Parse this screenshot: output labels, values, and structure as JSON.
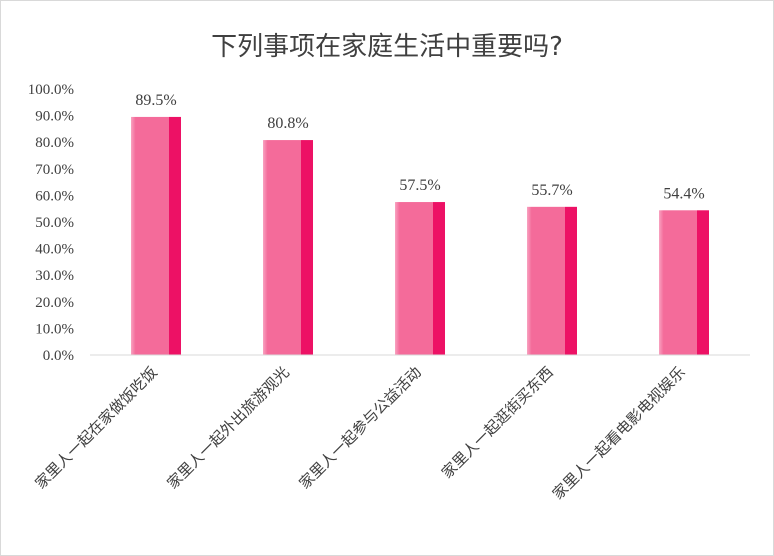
{
  "chart_data": {
    "type": "bar",
    "title": "下列事项在家庭生活中重要吗?",
    "categories": [
      "家里人一起在家做饭吃饭",
      "家里人一起外出旅游观光",
      "家里人一起参与公益活动",
      "家里人一起逛街买东西",
      "家里人一起看电影电视娱乐"
    ],
    "values": [
      89.5,
      80.8,
      57.5,
      55.7,
      54.4
    ],
    "data_labels": [
      "89.5%",
      "80.8%",
      "57.5%",
      "55.7%",
      "54.4%"
    ],
    "yticks": [
      "0.0%",
      "10.0%",
      "20.0%",
      "30.0%",
      "40.0%",
      "50.0%",
      "60.0%",
      "70.0%",
      "80.0%",
      "90.0%",
      "100.0%"
    ],
    "ylim": [
      0,
      100
    ],
    "xlabel": "",
    "ylabel": "",
    "grid": false,
    "legend": "none",
    "colors": {
      "bar_light": "#f46b9a",
      "bar_dark": "#ed1165",
      "bar_highlight": "#f9a3c1"
    }
  }
}
